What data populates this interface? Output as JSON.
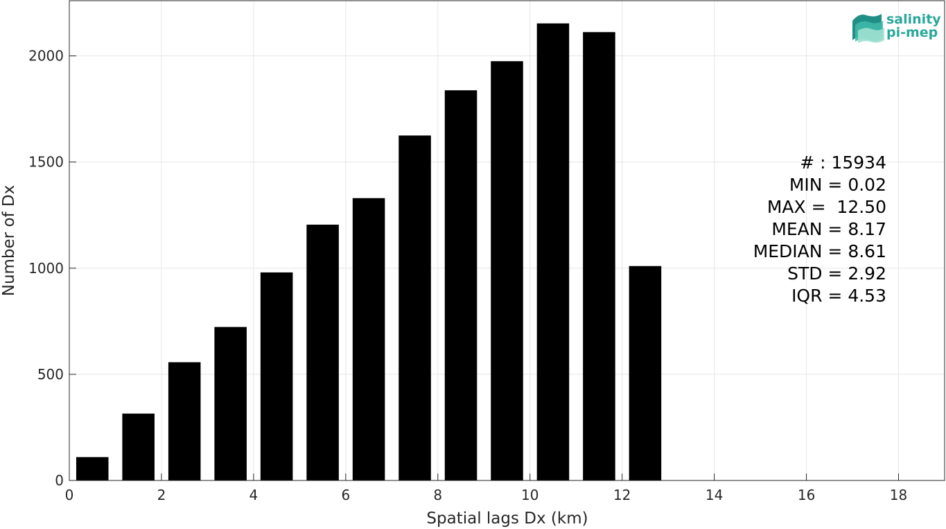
{
  "chart_data": {
    "type": "bar",
    "xlabel": "Spatial lags Dx (km)",
    "ylabel": "Number of Dx",
    "xlim": [
      0,
      19
    ],
    "ylim": [
      0,
      2260
    ],
    "xticks": [
      0,
      2,
      4,
      6,
      8,
      10,
      12,
      14,
      16,
      18
    ],
    "yticks": [
      0,
      500,
      1000,
      1500,
      2000
    ],
    "bin_width": 1,
    "bin_centers": [
      0.5,
      1.5,
      2.5,
      3.5,
      4.5,
      5.5,
      6.5,
      7.5,
      8.5,
      9.5,
      10.5,
      11.5,
      12.5
    ],
    "values": [
      110,
      315,
      557,
      723,
      980,
      1205,
      1330,
      1625,
      1838,
      1975,
      2153,
      2112,
      1010
    ],
    "bar_color": "#000000",
    "grid": true
  },
  "stats": {
    "lines": [
      "# : 15934",
      "MIN = 0.02",
      "MAX =  12.50",
      "MEAN = 8.17",
      "MEDIAN = 8.61",
      "STD = 2.92",
      "IQR = 4.53"
    ]
  },
  "logo": {
    "line1": "salinity",
    "line2": "pi-mep",
    "color": "#2aa79b"
  }
}
